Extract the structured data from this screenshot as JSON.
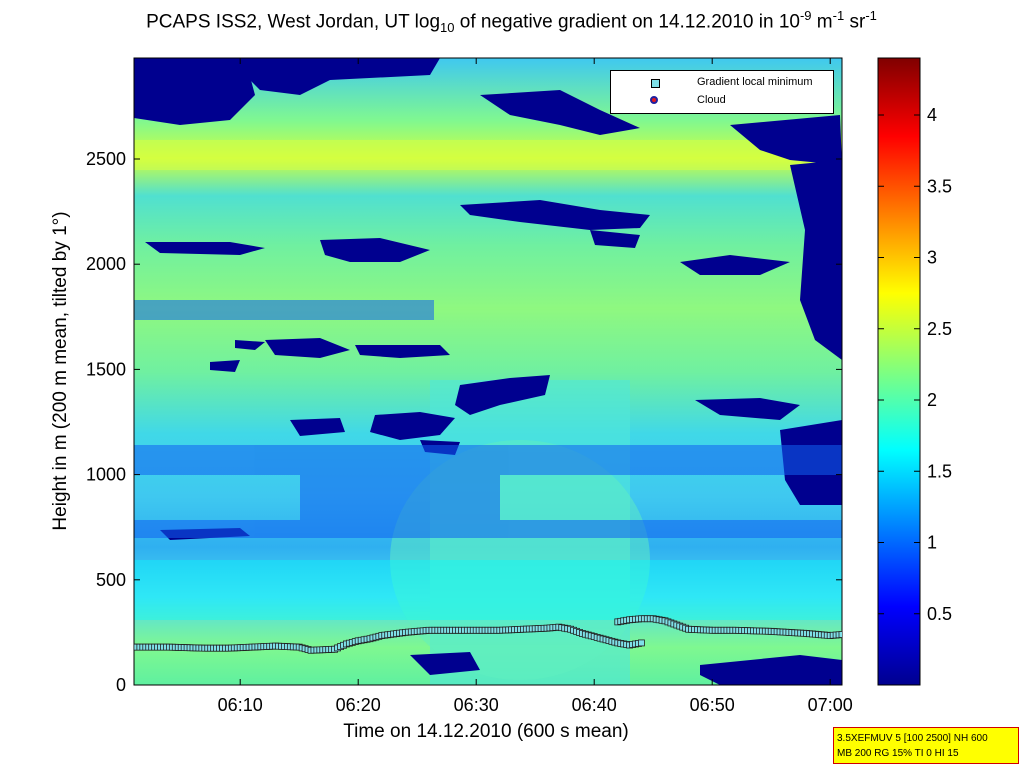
{
  "title_prefix": "PCAPS ISS2, West Jordan, UT log",
  "title_sub": "10",
  "title_mid": " of negative gradient on 14.12.2010 in 10",
  "title_sup1": "-9",
  "title_m": " m",
  "title_sup2": "-1",
  "title_sr": " sr",
  "title_sup3": "-1",
  "chart_data": {
    "type": "heatmap",
    "xlabel": "Time on 14.12.2010 (600 s mean)",
    "ylabel": "Height in m (200 m mean, tilted by 1°)",
    "x_ticks": [
      "06:10",
      "06:20",
      "06:30",
      "06:40",
      "06:50",
      "07:00"
    ],
    "x_tick_minutes": [
      10,
      20,
      30,
      40,
      50,
      60
    ],
    "xlim_minutes": [
      1,
      61
    ],
    "y_ticks": [
      0,
      500,
      1000,
      1500,
      2000,
      2500
    ],
    "ylim": [
      0,
      2980
    ],
    "colorbar_ticks": [
      0.5,
      1,
      1.5,
      2,
      2.5,
      3,
      3.5,
      4
    ],
    "colorbar_range": [
      0,
      4.4
    ],
    "colormap": "jet",
    "legend": {
      "placement": "top-right",
      "entries": [
        {
          "label": "Gradient local minimum",
          "marker": "square",
          "color": "#7fe0e8"
        },
        {
          "label": "Cloud",
          "marker": "circle",
          "color": "#e0191f"
        }
      ]
    },
    "gradient_minimum_series": {
      "x_minutes": [
        1,
        4,
        7,
        9,
        11,
        13,
        15,
        16,
        18,
        19,
        20,
        21,
        22,
        24,
        26,
        28,
        30,
        32,
        34,
        36,
        37,
        38,
        39,
        40,
        41,
        42,
        43,
        44
      ],
      "y_m": [
        180,
        180,
        175,
        175,
        180,
        185,
        180,
        165,
        170,
        195,
        210,
        220,
        235,
        250,
        260,
        260,
        260,
        260,
        265,
        270,
        275,
        265,
        245,
        230,
        215,
        200,
        190,
        200
      ]
    },
    "gradient_minimum_upper": {
      "x_minutes": [
        42,
        43,
        44,
        45,
        46,
        47,
        48,
        50,
        52,
        55,
        58,
        60,
        61
      ],
      "y_m": [
        300,
        310,
        315,
        315,
        305,
        285,
        265,
        260,
        260,
        255,
        245,
        235,
        240
      ]
    }
  },
  "infobox": {
    "line1": "3.5XEFMUV 5 [100 2500] NH 600",
    "line2": "MB 200 RG 15% TI 0 HI 15"
  }
}
